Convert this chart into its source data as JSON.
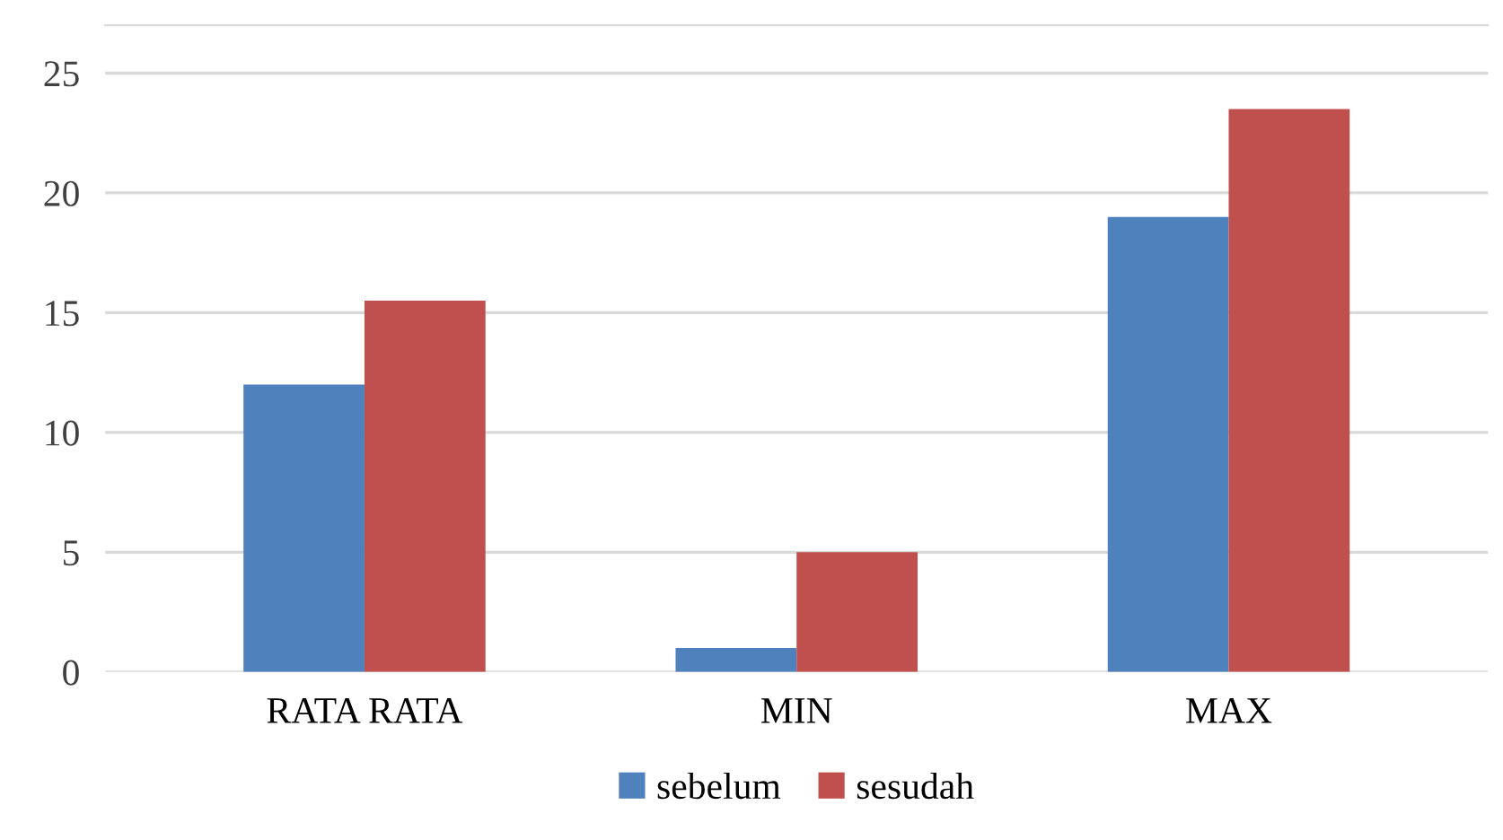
{
  "chart_data": {
    "type": "bar",
    "categories": [
      "RATA RATA",
      "MIN",
      "MAX"
    ],
    "series": [
      {
        "name": "sebelum",
        "color": "#4f81bd",
        "values": [
          12,
          1,
          19
        ]
      },
      {
        "name": "sesudah",
        "color": "#c0504d",
        "values": [
          15.5,
          5,
          23.5
        ]
      }
    ],
    "ylim": [
      0,
      27
    ],
    "yticks": [
      0,
      5,
      10,
      15,
      20,
      25
    ],
    "grid": "y",
    "legend": "bottom"
  }
}
